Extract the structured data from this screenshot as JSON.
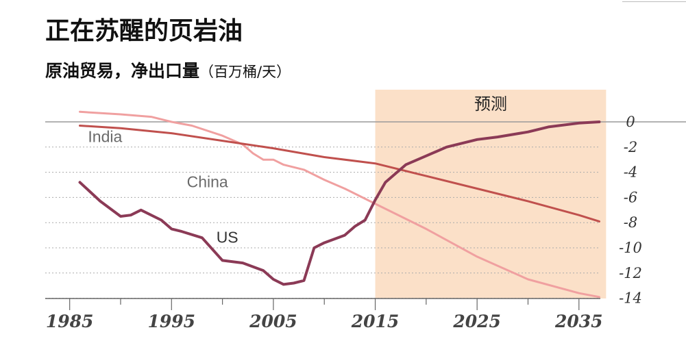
{
  "chart_data": {
    "type": "line",
    "title": "正在苏醒的页岩油",
    "subtitle": "原油贸易，净出口量",
    "unit": "（百万桶/天）",
    "forecast_label": "预测",
    "forecast_start": 2015,
    "xlim": [
      1985,
      2038
    ],
    "ylim": [
      -14.5,
      0
    ],
    "x_ticks": [
      1985,
      1995,
      2005,
      2015,
      2025,
      2035
    ],
    "y_ticks": [
      0,
      -2,
      -4,
      -6,
      -8,
      -10,
      -12,
      -14
    ],
    "y_tick_labels": [
      "0",
      "-2",
      "-4",
      "-6",
      "-8",
      "-10",
      "-12",
      "-14"
    ],
    "grid": "dotted horizontal",
    "colors": {
      "US": "#8b3a56",
      "India": "#c0504d",
      "China": "#f0a0a0",
      "forecast_band": "#fbe0c8",
      "zero_line": "#999999",
      "grid": "#aaaaaa"
    },
    "series": [
      {
        "name": "US",
        "x": [
          1986,
          1988,
          1990,
          1991,
          1992,
          1994,
          1995,
          1996,
          1998,
          2000,
          2002,
          2004,
          2005,
          2006,
          2007,
          2008,
          2009,
          2010,
          2011,
          2012,
          2013,
          2014,
          2015,
          2016,
          2017,
          2018,
          2020,
          2022,
          2025,
          2027,
          2030,
          2032,
          2035,
          2037
        ],
        "values": [
          -4.8,
          -6.3,
          -7.5,
          -7.4,
          -7.0,
          -7.8,
          -8.5,
          -8.7,
          -9.2,
          -11.0,
          -11.2,
          -11.8,
          -12.5,
          -12.9,
          -12.8,
          -12.6,
          -10.0,
          -9.6,
          -9.3,
          -9.0,
          -8.3,
          -7.8,
          -6.2,
          -4.8,
          -4.1,
          -3.4,
          -2.7,
          -2.0,
          -1.4,
          -1.2,
          -0.8,
          -0.4,
          -0.1,
          0.0
        ]
      },
      {
        "name": "India",
        "x": [
          1986,
          1990,
          1995,
          2000,
          2005,
          2010,
          2015,
          2020,
          2025,
          2030,
          2035,
          2037
        ],
        "values": [
          -0.3,
          -0.5,
          -0.9,
          -1.5,
          -2.1,
          -2.8,
          -3.3,
          -4.3,
          -5.3,
          -6.3,
          -7.4,
          -7.9
        ]
      },
      {
        "name": "China",
        "x": [
          1986,
          1990,
          1993,
          1995,
          1997,
          2000,
          2002,
          2003,
          2004,
          2005,
          2006,
          2008,
          2010,
          2012,
          2015,
          2020,
          2025,
          2030,
          2035,
          2037
        ],
        "values": [
          0.8,
          0.6,
          0.4,
          0.0,
          -0.3,
          -1.1,
          -1.8,
          -2.5,
          -3.0,
          -3.0,
          -3.4,
          -3.8,
          -4.6,
          -5.3,
          -6.5,
          -8.5,
          -10.7,
          -12.5,
          -13.6,
          -13.9
        ]
      }
    ]
  }
}
